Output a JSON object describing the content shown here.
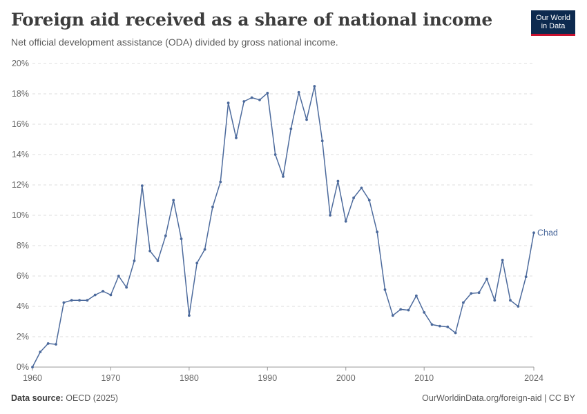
{
  "header": {
    "title": "Foreign aid received as a share of national income",
    "subtitle": "Net official development assistance (ODA) divided by gross national income.",
    "logo_line1": "Our World",
    "logo_line2": "in Data"
  },
  "footer": {
    "source_label": "Data source:",
    "source_value": "OECD (2025)",
    "link": "OurWorldinData.org/foreign-aid | CC BY"
  },
  "colors": {
    "series": "#4c6a9c",
    "grid": "#dddddd",
    "axis": "#999999",
    "logo_bg": "#0d2a4f",
    "logo_accent": "#c8102e"
  },
  "chart_data": {
    "type": "line",
    "title": "Foreign aid received as a share of national income",
    "subtitle": "Net official development assistance (ODA) divided by gross national income.",
    "xlabel": "",
    "ylabel": "",
    "xlim": [
      1960,
      2024
    ],
    "ylim": [
      0,
      20
    ],
    "yticks": [
      0,
      2,
      4,
      6,
      8,
      10,
      12,
      14,
      16,
      18,
      20
    ],
    "ytick_labels": [
      "0%",
      "2%",
      "4%",
      "6%",
      "8%",
      "10%",
      "12%",
      "14%",
      "16%",
      "18%",
      "20%"
    ],
    "xticks": [
      1960,
      1970,
      1980,
      1990,
      2000,
      2010,
      2024
    ],
    "xtick_labels": [
      "1960",
      "1970",
      "1980",
      "1990",
      "2000",
      "2010",
      "2024"
    ],
    "grid": "horizontal dashed",
    "legend": "inline label at line end",
    "series": [
      {
        "name": "Chad",
        "x": [
          1960,
          1961,
          1962,
          1963,
          1964,
          1965,
          1966,
          1967,
          1968,
          1969,
          1970,
          1971,
          1972,
          1973,
          1974,
          1975,
          1976,
          1977,
          1978,
          1979,
          1980,
          1981,
          1982,
          1983,
          1984,
          1985,
          1986,
          1987,
          1988,
          1989,
          1990,
          1991,
          1992,
          1993,
          1994,
          1995,
          1996,
          1997,
          1998,
          1999,
          2000,
          2001,
          2002,
          2003,
          2004,
          2005,
          2006,
          2007,
          2008,
          2009,
          2010,
          2011,
          2012,
          2013,
          2014,
          2015,
          2016,
          2017,
          2018,
          2019,
          2020,
          2021,
          2022,
          2023,
          2024
        ],
        "y": [
          0.0,
          1.0,
          1.55,
          1.5,
          4.25,
          4.4,
          4.4,
          4.4,
          4.75,
          5.0,
          4.75,
          6.0,
          5.25,
          7.0,
          11.95,
          7.65,
          7.0,
          8.65,
          11.0,
          8.45,
          3.4,
          6.85,
          7.75,
          10.55,
          12.2,
          17.4,
          15.1,
          17.5,
          17.75,
          17.6,
          18.05,
          14.0,
          12.55,
          15.7,
          18.1,
          16.3,
          18.5,
          14.9,
          10.0,
          12.25,
          9.6,
          11.15,
          11.8,
          11.0,
          8.9,
          5.1,
          3.4,
          3.8,
          3.75,
          4.7,
          3.6,
          2.8,
          2.7,
          2.65,
          2.25,
          4.25,
          4.85,
          4.9,
          5.8,
          4.4,
          7.05,
          4.4,
          4.0,
          5.95,
          8.85
        ]
      }
    ]
  }
}
